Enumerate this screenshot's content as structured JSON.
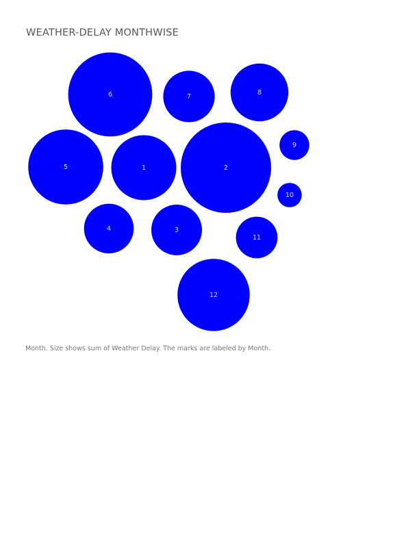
{
  "title": "WEATHER-DELAY MONTHWISE",
  "caption": "Month.  Size shows sum of Weather Delay.  The marks are labeled by Month.",
  "colors": {
    "mark": "#0000ff",
    "label": "#dcdcff"
  },
  "chart_data": {
    "type": "packed-bubble",
    "title": "WEATHER-DELAY MONTHWISE",
    "dimension": "Month",
    "measure": "sum of Weather Delay",
    "bubbles": [
      {
        "label": "1",
        "relative_size": 0.72
      },
      {
        "label": "2",
        "relative_size": 1.0
      },
      {
        "label": "3",
        "relative_size": 0.56
      },
      {
        "label": "4",
        "relative_size": 0.55
      },
      {
        "label": "5",
        "relative_size": 0.83
      },
      {
        "label": "6",
        "relative_size": 0.93
      },
      {
        "label": "7",
        "relative_size": 0.57
      },
      {
        "label": "8",
        "relative_size": 0.64
      },
      {
        "label": "9",
        "relative_size": 0.33
      },
      {
        "label": "10",
        "relative_size": 0.27
      },
      {
        "label": "11",
        "relative_size": 0.46
      },
      {
        "label": "12",
        "relative_size": 0.8
      }
    ]
  }
}
